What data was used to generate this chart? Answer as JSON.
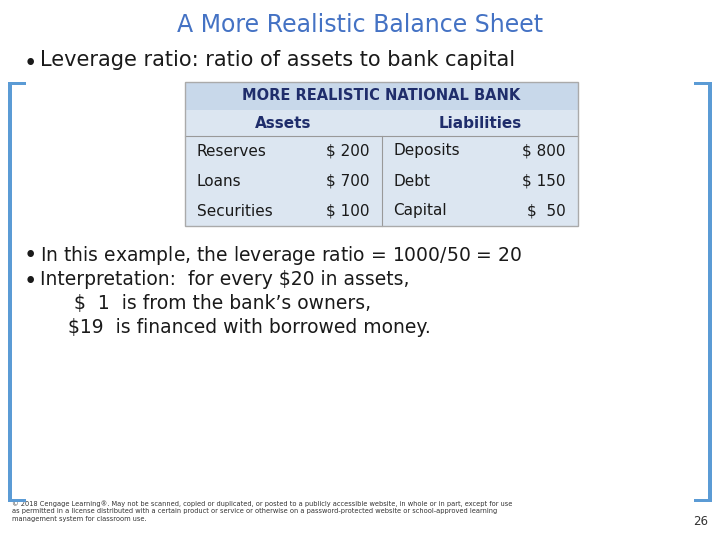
{
  "title": "A More Realistic Balance Sheet",
  "title_color": "#4472c4",
  "title_fontsize": 17,
  "background_color": "#ffffff",
  "border_color": "#5b9bd5",
  "bullet1": "Leverage ratio: ratio of assets to bank capital",
  "table_header": "MORE REALISTIC NATIONAL BANK",
  "table_header_color": "#1f2d6b",
  "table_header_bg": "#c8d8ea",
  "table_bg_color": "#dce6f1",
  "col_headers": [
    "Assets",
    "Liabilities"
  ],
  "col_header_color": "#1f2d6b",
  "assets": [
    [
      "Reserves",
      "$ 200"
    ],
    [
      "Loans",
      "$ 700"
    ],
    [
      "Securities",
      "$ 100"
    ]
  ],
  "liabilities": [
    [
      "Deposits",
      "$ 800"
    ],
    [
      "Debt",
      "$ 150"
    ],
    [
      "Capital",
      "$  50"
    ]
  ],
  "row_text_color": "#1a1a1a",
  "bullet2": "In this example, the leverage ratio = $1000/$50 = 20",
  "bullet3": "Interpretation:  for every $20 in assets,",
  "bullet4": "   $  1  is from the bank’s owners,",
  "bullet5": "  $19  is financed with borrowed money.",
  "footer": "© 2018 Cengage Learning®. May not be scanned, copied or duplicated, or posted to a publicly accessible website, in whole or in part, except for use\nas permitted in a license distributed with a certain product or service or otherwise on a password-protected website or school-approved learning\nmanagement system for classroom use.",
  "footer_color": "#333333",
  "page_number": "26",
  "bullet_color": "#1a1a1a",
  "bullet_fontsize": 13.5,
  "table_fontsize": 11,
  "table_header_fontsize": 10.5
}
